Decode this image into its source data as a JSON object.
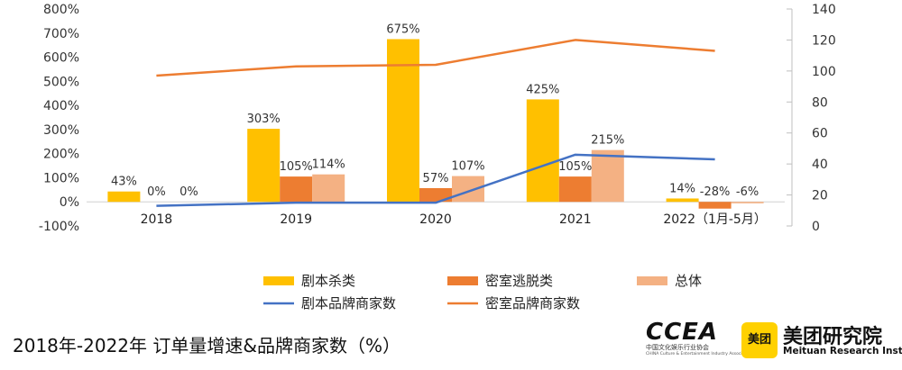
{
  "chart_data": {
    "type": "bar",
    "title": "2018年-2022年 订单量增速&品牌商家数（%）",
    "categories": [
      "2018",
      "2019",
      "2020",
      "2021",
      "2022（1月-5月）"
    ],
    "series": [
      {
        "name": "剧本杀类",
        "kind": "bar",
        "axis": "left",
        "color": "#FFC000",
        "values": [
          43,
          303,
          675,
          425,
          14
        ],
        "labels": [
          "43%",
          "303%",
          "675%",
          "425%",
          "14%"
        ]
      },
      {
        "name": "密室逃脱类",
        "kind": "bar",
        "axis": "left",
        "color": "#ED7D31",
        "values": [
          0,
          105,
          57,
          105,
          -28
        ],
        "labels": [
          "0%",
          "105%",
          "57%",
          "105%",
          "-28%"
        ]
      },
      {
        "name": "总体",
        "kind": "bar",
        "axis": "left",
        "color": "#F4B183",
        "values": [
          0,
          114,
          107,
          215,
          -6
        ],
        "labels": [
          "0%",
          "114%",
          "107%",
          "215%",
          "-6%"
        ]
      },
      {
        "name": "剧本品牌商家数",
        "kind": "line",
        "axis": "right",
        "color": "#4472C4",
        "values": [
          13,
          15,
          15,
          46,
          43
        ]
      },
      {
        "name": "密室品牌商家数",
        "kind": "line",
        "axis": "right",
        "color": "#ED7D31",
        "values": [
          97,
          103,
          104,
          120,
          113
        ]
      }
    ],
    "y_left": {
      "min": -100,
      "max": 800,
      "step": 100,
      "ticks": [
        "-100%",
        "0%",
        "100%",
        "200%",
        "300%",
        "400%",
        "500%",
        "600%",
        "700%",
        "800%"
      ]
    },
    "y_right": {
      "min": 0,
      "max": 140,
      "step": 20,
      "ticks": [
        "0",
        "20",
        "40",
        "60",
        "80",
        "100",
        "120",
        "140"
      ]
    },
    "grid": false,
    "legend_position": "bottom-center"
  },
  "logos": {
    "ccea_mark": "CCEA",
    "ccea_cn": "中国文化娱乐行业协会",
    "ccea_en": "CHINA Culture & Entertainment Industry Association",
    "meituan_badge": "美团",
    "meituan_name": "美团研究院",
    "meituan_en": "Meituan Research Institute"
  }
}
